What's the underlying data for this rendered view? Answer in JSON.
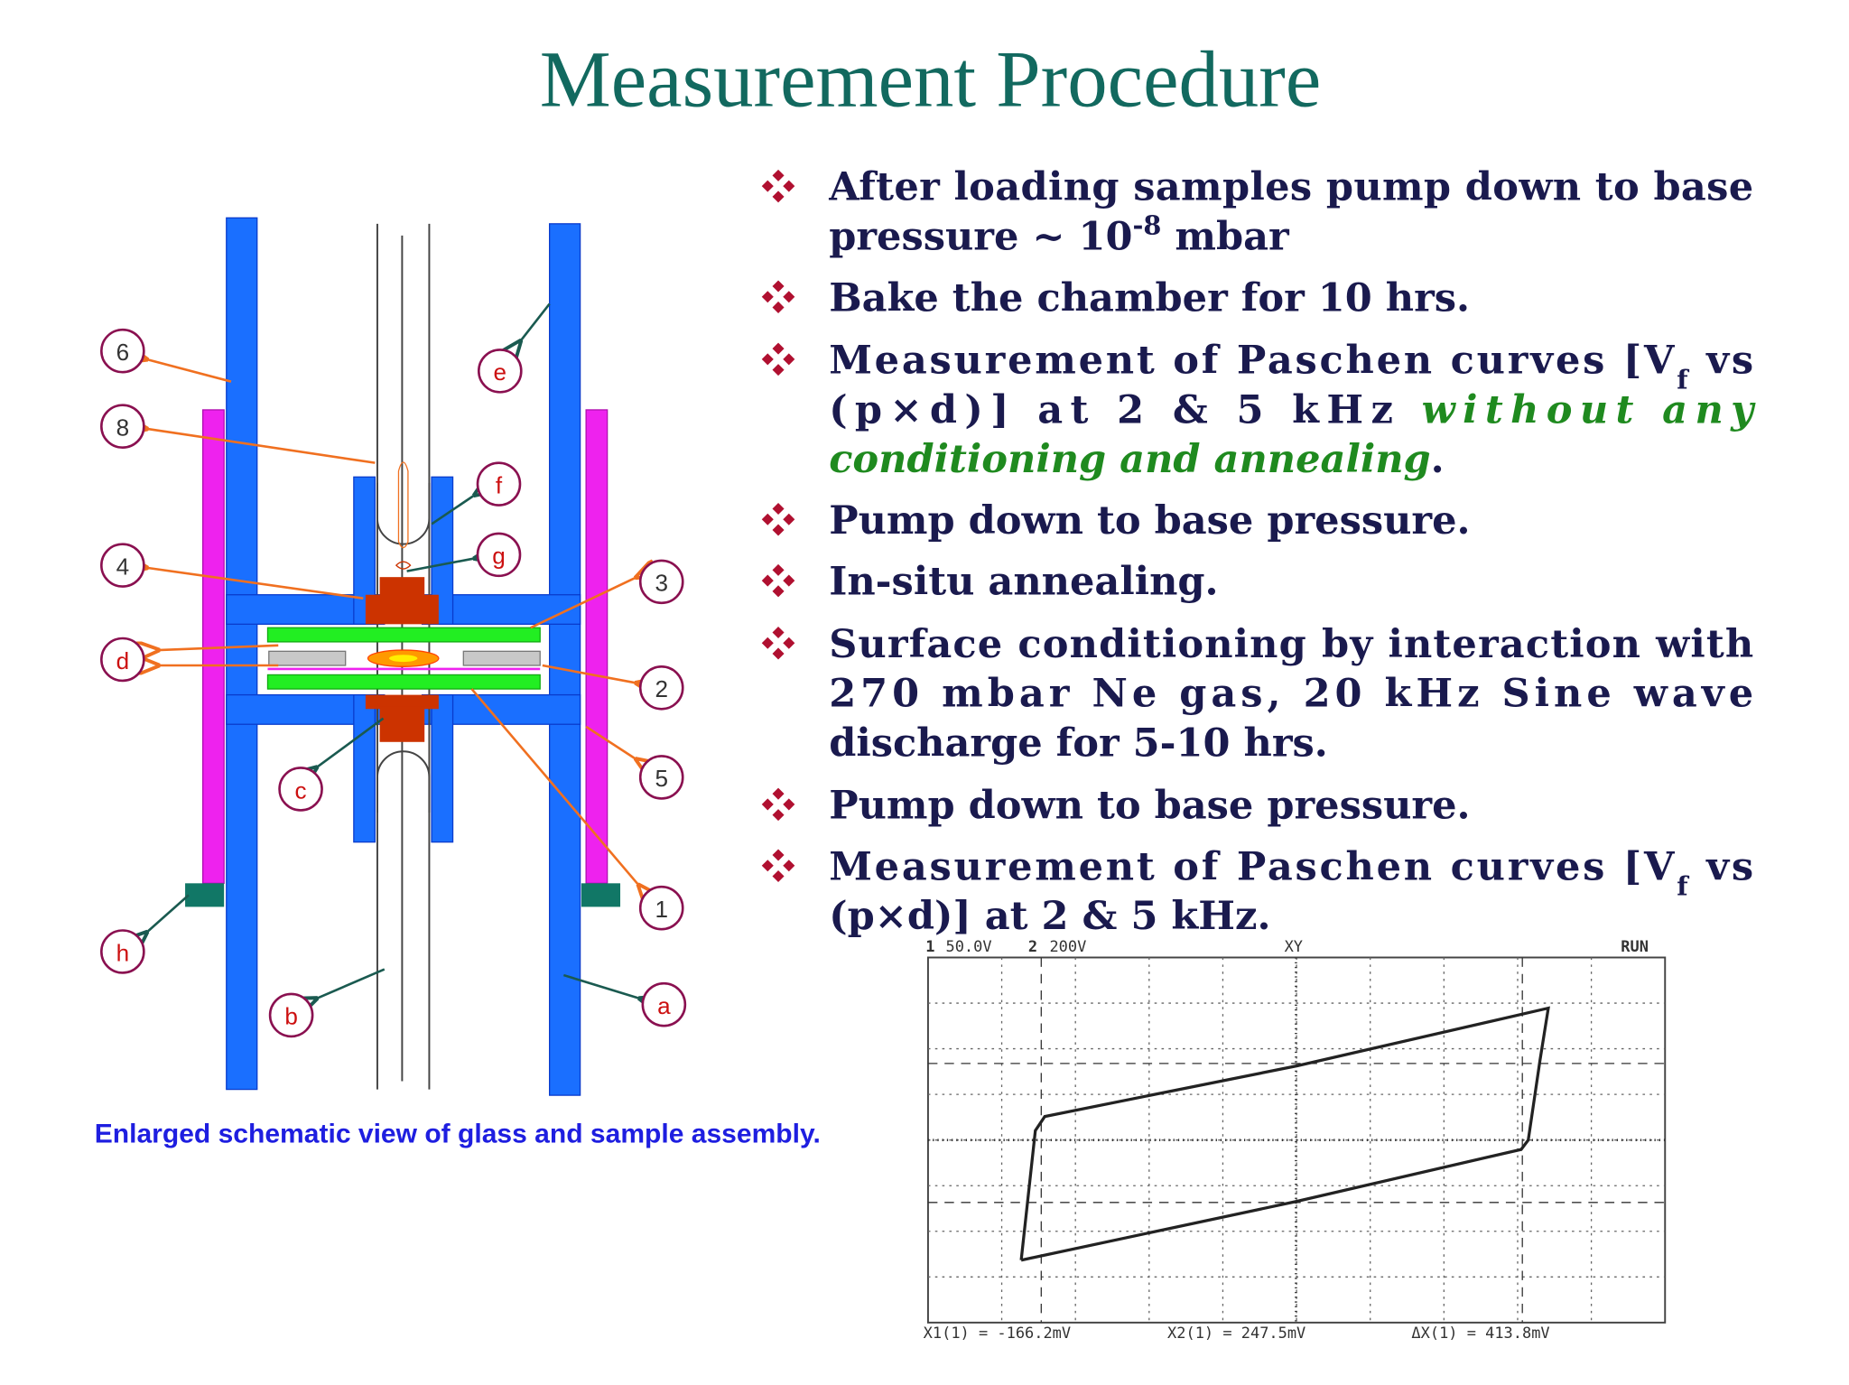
{
  "title": "Measurement Procedure",
  "bullets": [
    [
      "After loading samples pump down to base",
      "pressure ~ 10",
      "-8",
      " mbar"
    ],
    [
      "Bake the chamber for 10 hrs."
    ],
    [
      "Measurement of Paschen curves [V",
      "f",
      " vs",
      "(p×d)] at 2 & 5 kHz ",
      "without any",
      "conditioning and annealing",
      "."
    ],
    [
      "Pump down to base pressure."
    ],
    [
      "In-situ annealing."
    ],
    [
      "Surface conditioning by interaction with",
      "270 mbar Ne gas, 20 kHz Sine wave",
      "discharge for 5-10 hrs."
    ],
    [
      "Pump down to base pressure."
    ],
    [
      "Measurement of Paschen curves [V",
      "f",
      " vs",
      "(p×d)] at 2 & 5 kHz."
    ]
  ],
  "diagram": {
    "labels": [
      "6",
      "8",
      "4",
      "d",
      "h",
      "b",
      "c",
      "e",
      "f",
      "g",
      "3",
      "2",
      "5",
      "1",
      "a"
    ],
    "caption": "Enlarged schematic view of glass and sample assembly."
  },
  "scope": {
    "ch1": "1",
    "ch1_scale": "50.0V",
    "ch2": "2",
    "ch2_scale": "200V",
    "mode": "XY",
    "status": "RUN",
    "readouts": [
      "X1(1) = -166.2mV",
      "X2(1) = 247.5mV",
      "ΔX(1) = 413.8mV"
    ]
  }
}
